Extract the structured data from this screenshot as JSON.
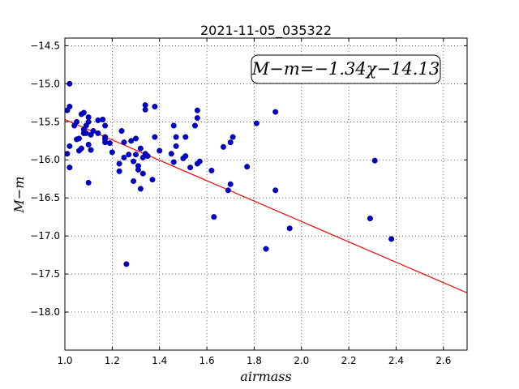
{
  "chart_data": {
    "type": "scatter",
    "title": "2021-11-05_035322",
    "xlabel": "airmass",
    "ylabel": "M−m",
    "xlim": [
      1.0,
      2.7
    ],
    "ylim": [
      -18.5,
      -14.4
    ],
    "y_inverted": true,
    "grid": true,
    "x_ticks": [
      1.0,
      1.2,
      1.4,
      1.6,
      1.8,
      2.0,
      2.2,
      2.4,
      2.6
    ],
    "x_tick_labels": [
      "1.0",
      "1.2",
      "1.4",
      "1.6",
      "1.8",
      "2.0",
      "2.2",
      "2.4",
      "2.6"
    ],
    "y_ticks": [
      -14.5,
      -15.0,
      -15.5,
      -16.0,
      -16.5,
      -17.0,
      -17.5,
      -18.0
    ],
    "y_tick_labels": [
      "−14.5",
      "−15.0",
      "−15.5",
      "−16.0",
      "−16.5",
      "−17.0",
      "−17.5",
      "−18.0"
    ],
    "annotation": "M−m=−1.34χ−14.13",
    "fit_line": {
      "slope": -1.34,
      "intercept": -14.13,
      "x_range": [
        1.0,
        2.7
      ],
      "color": "#ff0000"
    },
    "point_color": "#0000cc",
    "points": [
      [
        1.01,
        -15.35
      ],
      [
        1.01,
        -15.92
      ],
      [
        1.02,
        -15.3
      ],
      [
        1.02,
        -15.0
      ],
      [
        1.02,
        -16.1
      ],
      [
        1.02,
        -15.82
      ],
      [
        1.04,
        -15.55
      ],
      [
        1.05,
        -15.5
      ],
      [
        1.05,
        -15.73
      ],
      [
        1.06,
        -15.88
      ],
      [
        1.06,
        -15.72
      ],
      [
        1.07,
        -15.85
      ],
      [
        1.07,
        -15.4
      ],
      [
        1.08,
        -15.38
      ],
      [
        1.08,
        -15.65
      ],
      [
        1.08,
        -15.6
      ],
      [
        1.09,
        -15.55
      ],
      [
        1.09,
        -15.65
      ],
      [
        1.1,
        -15.44
      ],
      [
        1.1,
        -15.8
      ],
      [
        1.1,
        -16.3
      ],
      [
        1.1,
        -15.5
      ],
      [
        1.11,
        -15.67
      ],
      [
        1.11,
        -15.87
      ],
      [
        1.12,
        -15.62
      ],
      [
        1.14,
        -15.48
      ],
      [
        1.14,
        -15.65
      ],
      [
        1.16,
        -15.47
      ],
      [
        1.17,
        -15.55
      ],
      [
        1.17,
        -15.7
      ],
      [
        1.17,
        -15.73
      ],
      [
        1.17,
        -15.77
      ],
      [
        1.19,
        -15.78
      ],
      [
        1.2,
        -15.9
      ],
      [
        1.23,
        -16.05
      ],
      [
        1.23,
        -16.15
      ],
      [
        1.24,
        -15.62
      ],
      [
        1.25,
        -15.77
      ],
      [
        1.25,
        -15.97
      ],
      [
        1.26,
        -17.37
      ],
      [
        1.27,
        -15.93
      ],
      [
        1.28,
        -15.75
      ],
      [
        1.29,
        -16.02
      ],
      [
        1.29,
        -16.28
      ],
      [
        1.3,
        -15.72
      ],
      [
        1.3,
        -15.93
      ],
      [
        1.31,
        -16.13
      ],
      [
        1.31,
        -16.08
      ],
      [
        1.32,
        -16.38
      ],
      [
        1.32,
        -15.85
      ],
      [
        1.33,
        -16.18
      ],
      [
        1.33,
        -15.97
      ],
      [
        1.34,
        -15.28
      ],
      [
        1.34,
        -15.34
      ],
      [
        1.34,
        -15.92
      ],
      [
        1.35,
        -15.95
      ],
      [
        1.37,
        -16.26
      ],
      [
        1.38,
        -15.7
      ],
      [
        1.38,
        -15.3
      ],
      [
        1.4,
        -15.88
      ],
      [
        1.45,
        -15.92
      ],
      [
        1.46,
        -16.03
      ],
      [
        1.46,
        -15.55
      ],
      [
        1.47,
        -15.82
      ],
      [
        1.47,
        -15.7
      ],
      [
        1.5,
        -15.98
      ],
      [
        1.51,
        -15.7
      ],
      [
        1.51,
        -15.95
      ],
      [
        1.53,
        -16.1
      ],
      [
        1.55,
        -15.55
      ],
      [
        1.56,
        -15.35
      ],
      [
        1.56,
        -15.45
      ],
      [
        1.56,
        -16.05
      ],
      [
        1.57,
        -16.02
      ],
      [
        1.62,
        -16.14
      ],
      [
        1.63,
        -16.75
      ],
      [
        1.67,
        -15.83
      ],
      [
        1.69,
        -16.4
      ],
      [
        1.7,
        -15.77
      ],
      [
        1.7,
        -16.32
      ],
      [
        1.71,
        -15.7
      ],
      [
        1.77,
        -16.09
      ],
      [
        1.81,
        -15.52
      ],
      [
        1.85,
        -17.17
      ],
      [
        1.89,
        -15.37
      ],
      [
        1.89,
        -16.4
      ],
      [
        1.95,
        -16.9
      ],
      [
        2.29,
        -16.77
      ],
      [
        2.31,
        -16.01
      ],
      [
        2.38,
        -17.04
      ]
    ]
  }
}
